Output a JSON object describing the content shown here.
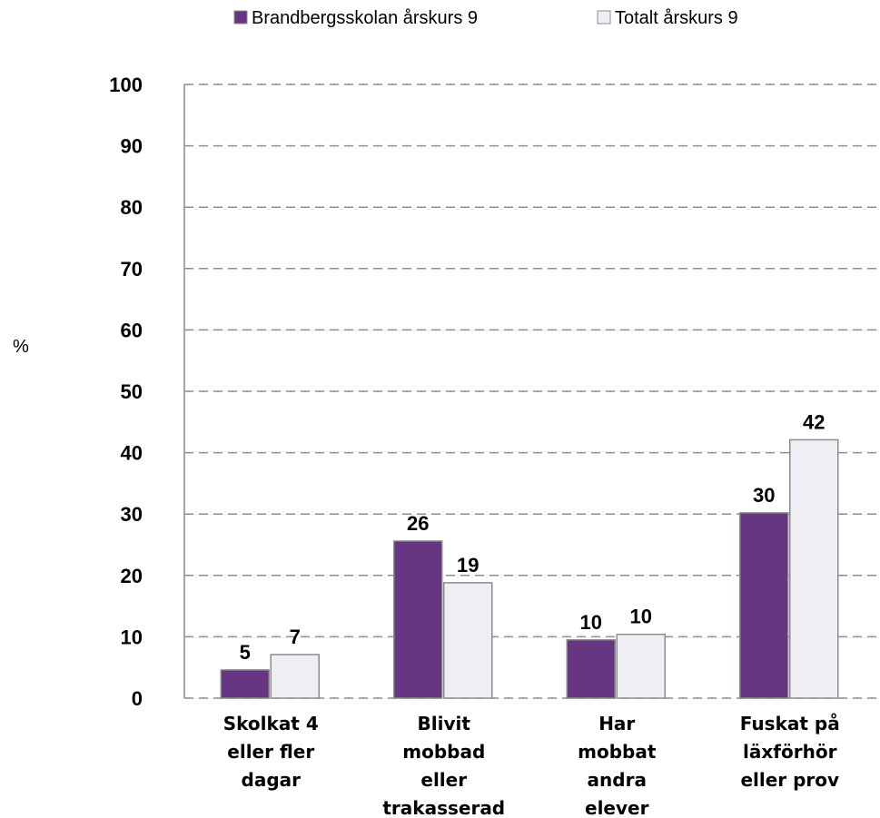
{
  "chart_data": {
    "type": "bar",
    "title": "",
    "xlabel": "",
    "ylabel": "%",
    "ylim": [
      0,
      100
    ],
    "yticks": [
      0,
      10,
      20,
      30,
      40,
      50,
      60,
      70,
      80,
      90,
      100
    ],
    "grid": true,
    "legend_position": "top",
    "categories": [
      "Skolkat 4 eller fler dagar",
      "Blivit mobbad eller trakasserad",
      "Har mobbat andra elever",
      "Fuskat på läxförhör eller prov"
    ],
    "category_lines": [
      [
        "Skolkat 4",
        "eller fler",
        "dagar"
      ],
      [
        "Blivit",
        "mobbad",
        "eller",
        "trakasserad"
      ],
      [
        "Har",
        "mobbat",
        "andra",
        "elever"
      ],
      [
        "Fuskat på",
        "läxförhör",
        "eller prov"
      ]
    ],
    "series": [
      {
        "name": "Brandbergsskolan årskurs 9",
        "color": "#663682",
        "values": [
          5,
          26,
          10,
          30
        ]
      },
      {
        "name": "Totalt årskurs 9",
        "color": "#efeef5",
        "values": [
          7,
          19,
          10,
          42
        ]
      }
    ],
    "bar_heights": [
      [
        4.6,
        25.6,
        9.5,
        30.2
      ],
      [
        7.1,
        18.8,
        10.4,
        42.1
      ]
    ]
  }
}
